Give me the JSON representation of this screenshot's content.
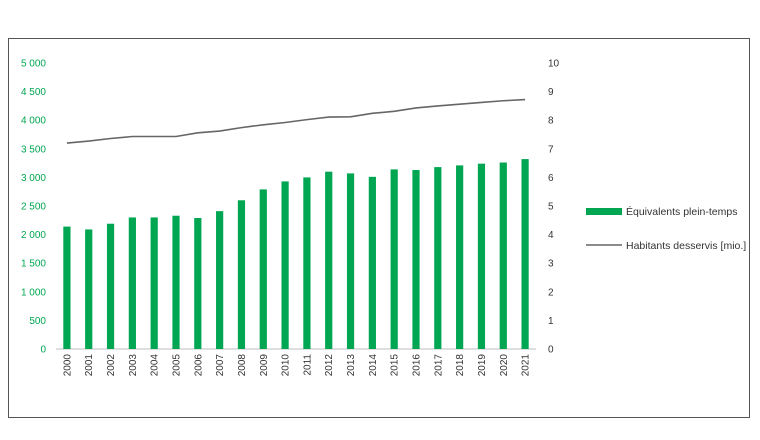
{
  "chart_data": {
    "type": "bar",
    "categories": [
      "2000",
      "2001",
      "2002",
      "2003",
      "2004",
      "2005",
      "2006",
      "2007",
      "2008",
      "2009",
      "2010",
      "2011",
      "2012",
      "2013",
      "2014",
      "2015",
      "2016",
      "2017",
      "2018",
      "2019",
      "2020",
      "2021"
    ],
    "series": [
      {
        "name": "Équivalents plein-temps",
        "type": "bar",
        "axis": "left",
        "color": "#00A651",
        "values": [
          2140,
          2090,
          2190,
          2300,
          2300,
          2330,
          2290,
          2410,
          2600,
          2790,
          2930,
          3000,
          3100,
          3070,
          3010,
          3140,
          3130,
          3180,
          3210,
          3240,
          3260,
          3320
        ]
      },
      {
        "name": "Habitants desservis [mio.]",
        "type": "line",
        "axis": "right",
        "color": "#666666",
        "values": [
          7.2,
          7.27,
          7.36,
          7.43,
          7.43,
          7.43,
          7.56,
          7.62,
          7.74,
          7.84,
          7.92,
          8.02,
          8.11,
          8.12,
          8.24,
          8.31,
          8.43,
          8.5,
          8.56,
          8.62,
          8.68,
          8.72
        ]
      }
    ],
    "y_left": {
      "min": 0,
      "max": 5000,
      "ticks": [
        "0",
        "500",
        "1 000",
        "1 500",
        "2 000",
        "2 500",
        "3 000",
        "3 500",
        "4 000",
        "4 500",
        "5 000"
      ],
      "color": "#00A651"
    },
    "y_right": {
      "min": 0,
      "max": 10,
      "ticks": [
        "0",
        "1",
        "2",
        "3",
        "4",
        "5",
        "6",
        "7",
        "8",
        "9",
        "10"
      ],
      "color": "#333333"
    },
    "grid": false,
    "legend_position": "right",
    "title": "",
    "xlabel": "",
    "ylabel": ""
  }
}
